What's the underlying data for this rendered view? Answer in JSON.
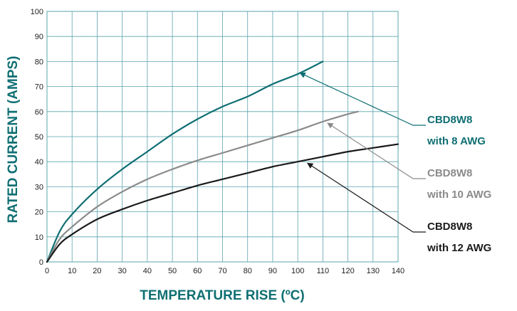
{
  "chart_data": {
    "type": "line",
    "xlabel": "TEMPERATURE RISE (ºC)",
    "ylabel": "RATED CURRENT (AMPS)",
    "xlim": [
      0,
      140
    ],
    "ylim": [
      0,
      100
    ],
    "xticks": [
      "0",
      "10",
      "20",
      "30",
      "40",
      "50",
      "60",
      "70",
      "80",
      "90",
      "100",
      "110",
      "120",
      "130",
      "140"
    ],
    "yticks": [
      "0",
      "10",
      "20",
      "30",
      "40",
      "50",
      "60",
      "70",
      "80",
      "90",
      "100"
    ],
    "grid": true,
    "legend_placement": "right",
    "series": [
      {
        "name_line1": "CBD8W8",
        "name_line2": "with 8 AWG",
        "color": "#0f6f73",
        "x": [
          0,
          5,
          10,
          20,
          30,
          40,
          50,
          60,
          70,
          80,
          90,
          100,
          110
        ],
        "y": [
          0,
          12,
          19,
          29,
          37,
          44,
          51,
          57,
          62,
          66,
          71,
          75,
          80
        ],
        "pointer_at": [
          100,
          76
        ]
      },
      {
        "name_line1": "CBD8W8",
        "name_line2": "with 10 AWG",
        "color": "#8a8a8a",
        "x": [
          0,
          5,
          10,
          20,
          30,
          40,
          50,
          60,
          70,
          80,
          90,
          100,
          110,
          120,
          124
        ],
        "y": [
          0,
          9,
          14,
          22,
          28,
          33,
          37,
          40.5,
          43.5,
          46.5,
          49.5,
          52.5,
          56,
          59,
          60
        ],
        "pointer_at": [
          111,
          56
        ]
      },
      {
        "name_line1": "CBD8W8",
        "name_line2": "with 12 AWG",
        "color": "#1a1a1a",
        "x": [
          0,
          5,
          10,
          20,
          30,
          40,
          50,
          60,
          70,
          80,
          90,
          100,
          110,
          120,
          130,
          140
        ],
        "y": [
          0,
          7,
          11,
          17,
          21,
          24.5,
          27.5,
          30.5,
          33,
          35.5,
          38,
          40,
          42,
          44,
          45.5,
          47
        ],
        "pointer_at": [
          103,
          40
        ]
      }
    ]
  },
  "colors": {
    "grid": "#5aa4ad",
    "frame": "#5aa4ad",
    "ylabel": "#0f6f73",
    "xlabel": "#0f6f73"
  }
}
